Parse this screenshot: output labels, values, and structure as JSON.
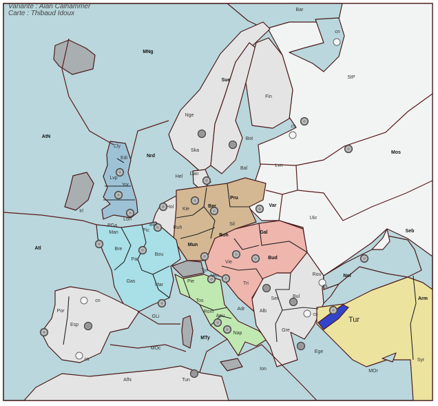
{
  "credits": {
    "variant": "Variante : Alan Calhammer",
    "map": "Carte : Thibaud Idoux"
  },
  "colors": {
    "sea": "#b9d7dc",
    "neutral": "#e4e4e4",
    "russia": "#f2f4f4",
    "england": "#9dc2d6",
    "france": "#a9dfe7",
    "germany": "#d3b893",
    "austria": "#efb6ae",
    "italy": "#c0e9b1",
    "turkey": "#ece39e",
    "impassable": "#a9aeb1",
    "strait": "#3344cc"
  },
  "labels": [
    "Bar",
    "cn",
    "StP",
    "Sue",
    "Fin",
    "Nge",
    "MNg",
    "AtN",
    "Nrd",
    "Ska",
    "Bot",
    "Bal",
    "Lvn",
    "Mos",
    "cs",
    "Cly",
    "Edi",
    "Lvp",
    "Yor",
    "Hel",
    "Dan",
    "Kie",
    "Ber",
    "Pru",
    "Var",
    "Ukr",
    "Seb",
    "Irl",
    "Lon",
    "PGa",
    "Hol",
    "Bel",
    "Pic",
    "Ruh",
    "Sil",
    "Gal",
    "Boh",
    "Mun",
    "Man",
    "Bre",
    "Par",
    "Bou",
    "Atl",
    "Vie",
    "Bud",
    "Tyr",
    "Ven",
    "Tri",
    "Rou",
    "Noi",
    "Gas",
    "Mar",
    "Pie",
    "Ser",
    "Bul",
    "cs",
    "cs",
    "Tur",
    "Arm",
    "Tos",
    "Adr",
    "Alb",
    "Rom",
    "Apu",
    "Nap",
    "Gre",
    "cn",
    "Por",
    "Esp",
    "GLi",
    "MTy",
    "cs",
    "MOc",
    "Ege",
    "Syr",
    "Ion",
    "MOr",
    "AfN",
    "Tun"
  ]
}
